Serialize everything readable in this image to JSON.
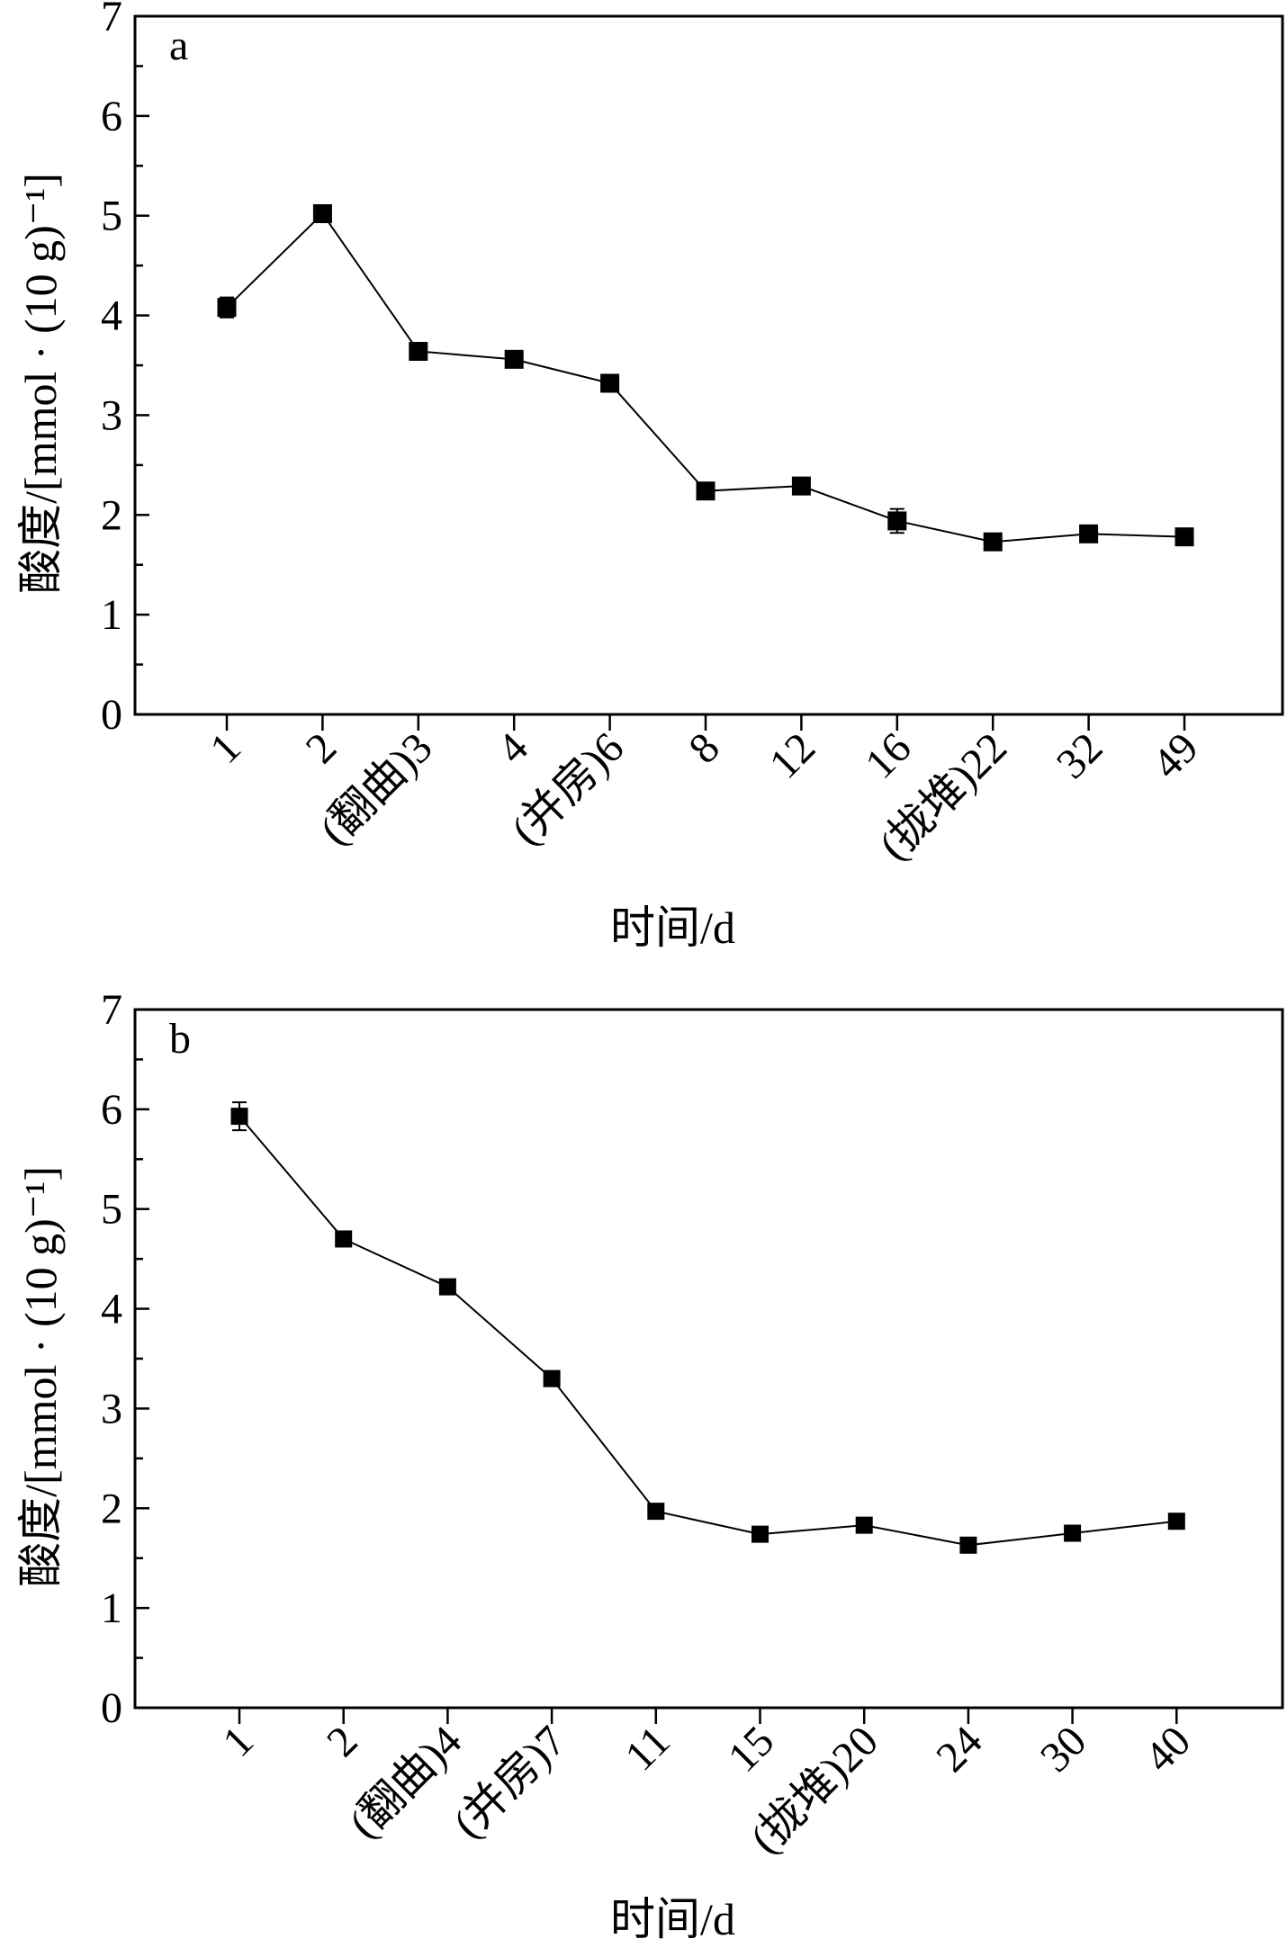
{
  "chart_data": [
    {
      "type": "line",
      "panel_label": "a",
      "categories": [
        "1",
        "2",
        "(翻曲)3",
        "4",
        "(并房)6",
        "8",
        "12",
        "16",
        "(拢堆)22",
        "32",
        "49"
      ],
      "series": [
        {
          "values": [
            4.08,
            5.02,
            3.64,
            3.56,
            3.32,
            2.24,
            2.29,
            1.94,
            1.73,
            1.81,
            1.78
          ],
          "errors": [
            0.1,
            0.03,
            0.04,
            0.08,
            0.06,
            0.03,
            0.04,
            0.12,
            0.06,
            0.04,
            0.04
          ]
        }
      ],
      "xlabel": "时间/d",
      "ylabel": "酸度/[mmol · (10 g)⁻¹]",
      "ylim": [
        0,
        7
      ],
      "yticks": [
        "0",
        "1",
        "2",
        "3",
        "4",
        "5",
        "6",
        "7"
      ],
      "grid": false,
      "marker": "square",
      "color": "#000000"
    },
    {
      "type": "line",
      "panel_label": "b",
      "categories": [
        "1",
        "2",
        "(翻曲)4",
        "(并房)7",
        "11",
        "15",
        "(拢堆)20",
        "24",
        "30",
        "40"
      ],
      "series": [
        {
          "values": [
            5.93,
            4.7,
            4.22,
            3.3,
            1.97,
            1.74,
            1.83,
            1.63,
            1.75,
            1.87
          ],
          "errors": [
            0.14,
            0.03,
            0.03,
            0.04,
            0.04,
            0.03,
            0.05,
            0.03,
            0.03,
            0.04
          ]
        }
      ],
      "xlabel": "时间/d",
      "ylabel": "酸度/[mmol · (10 g)⁻¹]",
      "ylim": [
        0,
        7
      ],
      "yticks": [
        "0",
        "1",
        "2",
        "3",
        "4",
        "5",
        "6",
        "7"
      ],
      "grid": false,
      "marker": "square",
      "color": "#000000"
    }
  ]
}
